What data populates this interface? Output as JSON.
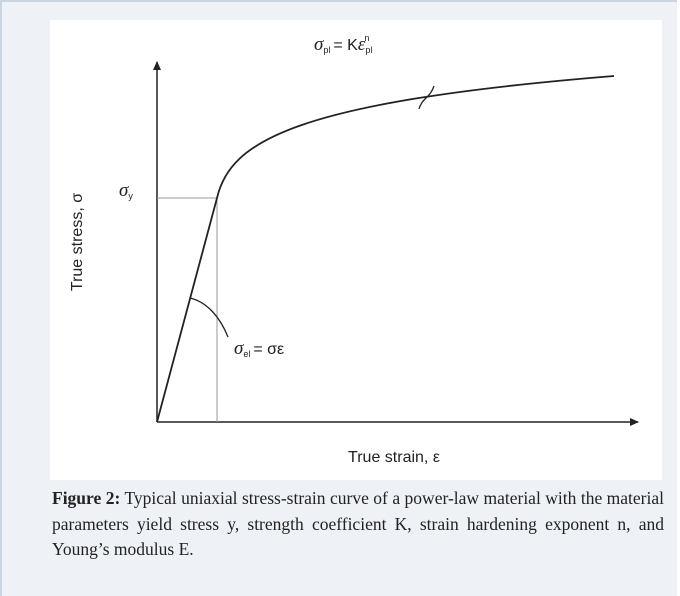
{
  "figure": {
    "axis_labels": {
      "y": "True stress, σ",
      "x": "True strain, ε"
    },
    "yield_label": {
      "symbol": "σ",
      "sub": "y"
    },
    "plastic_eq": {
      "lhs": "σ",
      "lhs_sub": "pl",
      "eq": "= K",
      "var": "ε",
      "var_sub": "pl",
      "exp": "n"
    },
    "elastic_eq": {
      "lhs": "σ",
      "lhs_sub": "el",
      "rhs": "= σε"
    }
  },
  "caption": {
    "label": "Figure 2:",
    "text": "Typical uniaxial stress-strain curve of a power-law material with the material parameters yield stress y, strength coefficient K, strain hardening exponent n, and Young’s modulus E."
  }
}
